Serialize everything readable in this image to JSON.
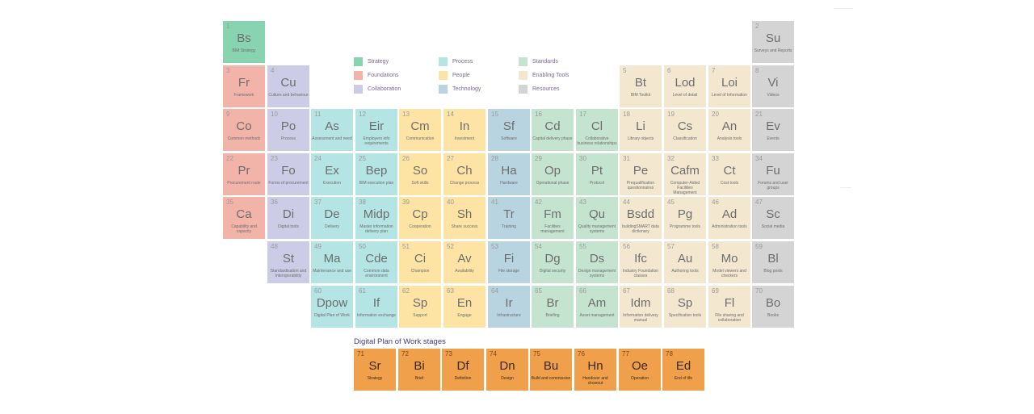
{
  "categories": {
    "strategy": {
      "label": "Strategy",
      "color": "#88d4b0"
    },
    "foundations": {
      "label": "Foundations",
      "color": "#f2b4a9"
    },
    "collaboration": {
      "label": "Collaboration",
      "color": "#cdcce6"
    },
    "process": {
      "label": "Process",
      "color": "#b4e4e4"
    },
    "people": {
      "label": "People",
      "color": "#fde4a4"
    },
    "technology": {
      "label": "Technology",
      "color": "#b8d4e0"
    },
    "standards": {
      "label": "Standards",
      "color": "#c4e4d0"
    },
    "enabling": {
      "label": "Enabling Tools",
      "color": "#f3e7cf"
    },
    "resources": {
      "label": "Resources",
      "color": "#d4d4d4"
    },
    "stages": {
      "label": "Digital Plan of Work stages",
      "color": "#f0a04b"
    }
  },
  "legend_order": [
    "strategy",
    "foundations",
    "collaboration",
    "process",
    "people",
    "technology",
    "standards",
    "enabling",
    "resources"
  ],
  "stages_heading": "Digital Plan of Work stages",
  "elements": [
    {
      "n": "1",
      "s": "Bs",
      "name": "BIM Strategy",
      "cat": "strategy",
      "row": 0,
      "col": 0
    },
    {
      "n": "2",
      "s": "Su",
      "name": "Surveys and Reports",
      "cat": "resources",
      "row": 0,
      "col": 12
    },
    {
      "n": "3",
      "s": "Fr",
      "name": "Framework",
      "cat": "foundations",
      "row": 1,
      "col": 0
    },
    {
      "n": "4",
      "s": "Cu",
      "name": "Culture and behaviour",
      "cat": "collaboration",
      "row": 1,
      "col": 1
    },
    {
      "n": "5",
      "s": "Bt",
      "name": "BIM Toolkit",
      "cat": "enabling",
      "row": 1,
      "col": 9
    },
    {
      "n": "6",
      "s": "Lod",
      "name": "Level of detail",
      "cat": "enabling",
      "row": 1,
      "col": 10
    },
    {
      "n": "7",
      "s": "Loi",
      "name": "Level of Information",
      "cat": "enabling",
      "row": 1,
      "col": 11
    },
    {
      "n": "8",
      "s": "Vi",
      "name": "Videos",
      "cat": "resources",
      "row": 1,
      "col": 12
    },
    {
      "n": "9",
      "s": "Co",
      "name": "Common methods",
      "cat": "foundations",
      "row": 2,
      "col": 0
    },
    {
      "n": "10",
      "s": "Po",
      "name": "Process",
      "cat": "collaboration",
      "row": 2,
      "col": 1
    },
    {
      "n": "11",
      "s": "As",
      "name": "Assessment and need",
      "cat": "process",
      "row": 2,
      "col": 2
    },
    {
      "n": "12",
      "s": "Eir",
      "name": "Employers info requirements",
      "cat": "process",
      "row": 2,
      "col": 3
    },
    {
      "n": "13",
      "s": "Cm",
      "name": "Communication",
      "cat": "people",
      "row": 2,
      "col": 4
    },
    {
      "n": "14",
      "s": "In",
      "name": "Investment",
      "cat": "people",
      "row": 2,
      "col": 5
    },
    {
      "n": "15",
      "s": "Sf",
      "name": "Software",
      "cat": "technology",
      "row": 2,
      "col": 6
    },
    {
      "n": "16",
      "s": "Cd",
      "name": "Capital delivery phase",
      "cat": "standards",
      "row": 2,
      "col": 7
    },
    {
      "n": "17",
      "s": "Cl",
      "name": "Collaborative business relationships",
      "cat": "standards",
      "row": 2,
      "col": 8
    },
    {
      "n": "18",
      "s": "Li",
      "name": "Library objects",
      "cat": "enabling",
      "row": 2,
      "col": 9
    },
    {
      "n": "19",
      "s": "Cs",
      "name": "Classification",
      "cat": "enabling",
      "row": 2,
      "col": 10
    },
    {
      "n": "20",
      "s": "An",
      "name": "Analysis tools",
      "cat": "enabling",
      "row": 2,
      "col": 11
    },
    {
      "n": "21",
      "s": "Ev",
      "name": "Events",
      "cat": "resources",
      "row": 2,
      "col": 12
    },
    {
      "n": "22",
      "s": "Pr",
      "name": "Procurement route",
      "cat": "foundations",
      "row": 3,
      "col": 0
    },
    {
      "n": "23",
      "s": "Fo",
      "name": "Forms of procurement",
      "cat": "collaboration",
      "row": 3,
      "col": 1
    },
    {
      "n": "24",
      "s": "Ex",
      "name": "Execution",
      "cat": "process",
      "row": 3,
      "col": 2
    },
    {
      "n": "25",
      "s": "Bep",
      "name": "BIM execution plan",
      "cat": "process",
      "row": 3,
      "col": 3
    },
    {
      "n": "26",
      "s": "So",
      "name": "Soft skills",
      "cat": "people",
      "row": 3,
      "col": 4
    },
    {
      "n": "27",
      "s": "Ch",
      "name": "Change process",
      "cat": "people",
      "row": 3,
      "col": 5
    },
    {
      "n": "28",
      "s": "Ha",
      "name": "Hardware",
      "cat": "technology",
      "row": 3,
      "col": 6
    },
    {
      "n": "29",
      "s": "Op",
      "name": "Operational phase",
      "cat": "standards",
      "row": 3,
      "col": 7
    },
    {
      "n": "30",
      "s": "Pt",
      "name": "Protocol",
      "cat": "standards",
      "row": 3,
      "col": 8
    },
    {
      "n": "31",
      "s": "Pe",
      "name": "Prequalification questionnaires",
      "cat": "enabling",
      "row": 3,
      "col": 9
    },
    {
      "n": "32",
      "s": "Cafm",
      "name": "Computer-Aided Facilities Management",
      "cat": "enabling",
      "row": 3,
      "col": 10
    },
    {
      "n": "33",
      "s": "Ct",
      "name": "Cost tools",
      "cat": "enabling",
      "row": 3,
      "col": 11
    },
    {
      "n": "34",
      "s": "Fu",
      "name": "Forums and user groups",
      "cat": "resources",
      "row": 3,
      "col": 12
    },
    {
      "n": "35",
      "s": "Ca",
      "name": "Capability and capacity",
      "cat": "foundations",
      "row": 4,
      "col": 0
    },
    {
      "n": "36",
      "s": "Di",
      "name": "Digital tools",
      "cat": "collaboration",
      "row": 4,
      "col": 1
    },
    {
      "n": "37",
      "s": "De",
      "name": "Delivery",
      "cat": "process",
      "row": 4,
      "col": 2
    },
    {
      "n": "38",
      "s": "Midp",
      "name": "Master information delivery plan",
      "cat": "process",
      "row": 4,
      "col": 3
    },
    {
      "n": "39",
      "s": "Cp",
      "name": "Cooperation",
      "cat": "people",
      "row": 4,
      "col": 4
    },
    {
      "n": "40",
      "s": "Sh",
      "name": "Share success",
      "cat": "people",
      "row": 4,
      "col": 5
    },
    {
      "n": "41",
      "s": "Tr",
      "name": "Training",
      "cat": "technology",
      "row": 4,
      "col": 6
    },
    {
      "n": "42",
      "s": "Fm",
      "name": "Facilities management",
      "cat": "standards",
      "row": 4,
      "col": 7
    },
    {
      "n": "43",
      "s": "Qu",
      "name": "Quality management systems",
      "cat": "standards",
      "row": 4,
      "col": 8
    },
    {
      "n": "44",
      "s": "Bsdd",
      "name": "buildingSMART data dictionary",
      "cat": "enabling",
      "row": 4,
      "col": 9
    },
    {
      "n": "45",
      "s": "Pg",
      "name": "Programme tools",
      "cat": "enabling",
      "row": 4,
      "col": 10
    },
    {
      "n": "46",
      "s": "Ad",
      "name": "Administration tools",
      "cat": "enabling",
      "row": 4,
      "col": 11
    },
    {
      "n": "47",
      "s": "Sc",
      "name": "Social media",
      "cat": "resources",
      "row": 4,
      "col": 12
    },
    {
      "n": "48",
      "s": "St",
      "name": "Standardisation and Interoperability",
      "cat": "collaboration",
      "row": 5,
      "col": 1
    },
    {
      "n": "49",
      "s": "Ma",
      "name": "Maintenance and use",
      "cat": "process",
      "row": 5,
      "col": 2
    },
    {
      "n": "50",
      "s": "Cde",
      "name": "Common data environment",
      "cat": "process",
      "row": 5,
      "col": 3
    },
    {
      "n": "51",
      "s": "Ci",
      "name": "Champion",
      "cat": "people",
      "row": 5,
      "col": 4
    },
    {
      "n": "52",
      "s": "Av",
      "name": "Availability",
      "cat": "people",
      "row": 5,
      "col": 5
    },
    {
      "n": "53",
      "s": "Fi",
      "name": "File storage",
      "cat": "technology",
      "row": 5,
      "col": 6
    },
    {
      "n": "54",
      "s": "Dg",
      "name": "Digital security",
      "cat": "standards",
      "row": 5,
      "col": 7
    },
    {
      "n": "55",
      "s": "Ds",
      "name": "Design management systems",
      "cat": "standards",
      "row": 5,
      "col": 8
    },
    {
      "n": "56",
      "s": "Ifc",
      "name": "Industry Foundation classes",
      "cat": "enabling",
      "row": 5,
      "col": 9
    },
    {
      "n": "57",
      "s": "Au",
      "name": "Authoring tools",
      "cat": "enabling",
      "row": 5,
      "col": 10
    },
    {
      "n": "58",
      "s": "Mo",
      "name": "Model viewers and checkers",
      "cat": "enabling",
      "row": 5,
      "col": 11
    },
    {
      "n": "59",
      "s": "Bl",
      "name": "Blog posts",
      "cat": "resources",
      "row": 5,
      "col": 12
    },
    {
      "n": "60",
      "s": "Dpow",
      "name": "Digital Plan of Work",
      "cat": "process",
      "row": 6,
      "col": 2
    },
    {
      "n": "61",
      "s": "If",
      "name": "Information exchange",
      "cat": "process",
      "row": 6,
      "col": 3
    },
    {
      "n": "62",
      "s": "Sp",
      "name": "Support",
      "cat": "people",
      "row": 6,
      "col": 4
    },
    {
      "n": "63",
      "s": "En",
      "name": "Engage",
      "cat": "people",
      "row": 6,
      "col": 5
    },
    {
      "n": "64",
      "s": "Ir",
      "name": "Infrastructure",
      "cat": "technology",
      "row": 6,
      "col": 6
    },
    {
      "n": "65",
      "s": "Br",
      "name": "Briefing",
      "cat": "standards",
      "row": 6,
      "col": 7
    },
    {
      "n": "66",
      "s": "Am",
      "name": "Asset management",
      "cat": "standards",
      "row": 6,
      "col": 8
    },
    {
      "n": "67",
      "s": "Idm",
      "name": "Information delivery manual",
      "cat": "enabling",
      "row": 6,
      "col": 9
    },
    {
      "n": "68",
      "s": "Sp",
      "name": "Specification tools",
      "cat": "enabling",
      "row": 6,
      "col": 10
    },
    {
      "n": "69",
      "s": "Fl",
      "name": "File sharing and collaboration",
      "cat": "enabling",
      "row": 6,
      "col": 11
    },
    {
      "n": "70",
      "s": "Bo",
      "name": "Books",
      "cat": "resources",
      "row": 6,
      "col": 12
    }
  ],
  "stages": [
    {
      "n": "71",
      "s": "Sr",
      "name": "Strategy"
    },
    {
      "n": "72",
      "s": "Bi",
      "name": "Brief"
    },
    {
      "n": "73",
      "s": "Df",
      "name": "Definition"
    },
    {
      "n": "74",
      "s": "Dn",
      "name": "Design"
    },
    {
      "n": "75",
      "s": "Bu",
      "name": "Build and commission"
    },
    {
      "n": "76",
      "s": "Hn",
      "name": "Handover and closeout"
    },
    {
      "n": "77",
      "s": "Oe",
      "name": "Operation"
    },
    {
      "n": "78",
      "s": "Ed",
      "name": "End of life"
    }
  ]
}
